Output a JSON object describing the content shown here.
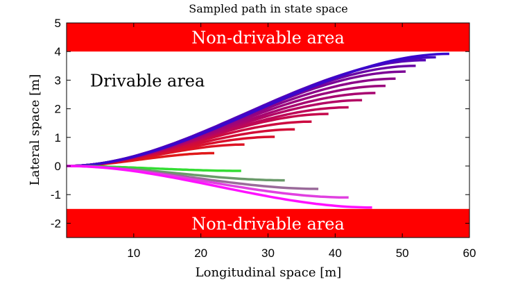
{
  "chart_data": {
    "type": "line",
    "title": "Sampled path in state space",
    "xlabel": "Longitudinal space [m]",
    "ylabel": "Lateral space [m]",
    "xlim": [
      0,
      60
    ],
    "ylim": [
      -2.5,
      5
    ],
    "xticks": [
      10,
      20,
      30,
      40,
      50,
      60
    ],
    "yticks": [
      -2,
      -1,
      0,
      1,
      2,
      3,
      4,
      5
    ],
    "xtick_labels": [
      "10",
      "20",
      "30",
      "40",
      "50",
      "60"
    ],
    "ytick_labels": [
      "-2",
      "-1",
      "0",
      "1",
      "2",
      "3",
      "4",
      "5"
    ],
    "grid": false,
    "legend": "none",
    "regions": [
      {
        "label": "Non-drivable area",
        "y_range": [
          4,
          5
        ],
        "color": "#ff0000"
      },
      {
        "label": "Non-drivable area",
        "y_range": [
          -2.5,
          -1.5
        ],
        "color": "#ff0000"
      }
    ],
    "annotations": [
      {
        "text": "Drivable area",
        "x": 3.5,
        "y": 3
      }
    ],
    "series": [
      {
        "end_x": 22,
        "end_y": 0.45,
        "color": "#e01919"
      },
      {
        "end_x": 26.5,
        "end_y": 0.75,
        "color": "#dd1424"
      },
      {
        "end_x": 31,
        "end_y": 1.02,
        "color": "#d8102c"
      },
      {
        "end_x": 34,
        "end_y": 1.28,
        "color": "#d20c36"
      },
      {
        "end_x": 36.5,
        "end_y": 1.55,
        "color": "#cc0a40"
      },
      {
        "end_x": 39,
        "end_y": 1.82,
        "color": "#c5084c"
      },
      {
        "end_x": 42,
        "end_y": 2.05,
        "color": "#bd0658"
      },
      {
        "end_x": 44,
        "end_y": 2.3,
        "color": "#b30564"
      },
      {
        "end_x": 46,
        "end_y": 2.55,
        "color": "#a70470"
      },
      {
        "end_x": 47.5,
        "end_y": 2.8,
        "color": "#9a047c"
      },
      {
        "end_x": 49,
        "end_y": 3.05,
        "color": "#8c0488"
      },
      {
        "end_x": 50.5,
        "end_y": 3.3,
        "color": "#7c0496"
      },
      {
        "end_x": 52,
        "end_y": 3.5,
        "color": "#6a05a4"
      },
      {
        "end_x": 53.5,
        "end_y": 3.7,
        "color": "#5806b4"
      },
      {
        "end_x": 55,
        "end_y": 3.8,
        "color": "#4606c2"
      },
      {
        "end_x": 57,
        "end_y": 3.92,
        "color": "#3a07cc"
      },
      {
        "end_x": 26,
        "end_y": -0.17,
        "color": "#33dd33"
      },
      {
        "end_x": 32.5,
        "end_y": -0.5,
        "color": "#6a9a6a"
      },
      {
        "end_x": 37.5,
        "end_y": -0.8,
        "color": "#9a6a9a"
      },
      {
        "end_x": 42,
        "end_y": -1.1,
        "color": "#e040e0"
      },
      {
        "end_x": 45.5,
        "end_y": -1.45,
        "color": "#ff11ff"
      }
    ]
  }
}
